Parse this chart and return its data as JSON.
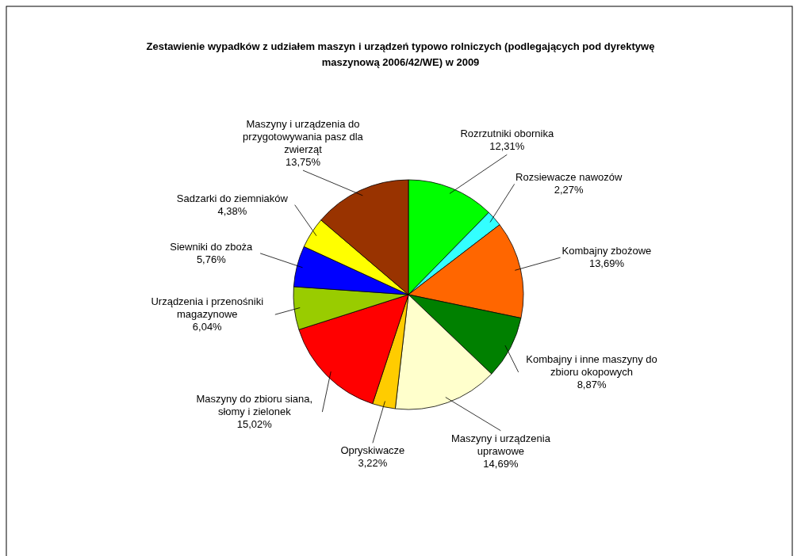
{
  "chart_data": {
    "type": "pie",
    "title": "Zestawienie wypadków z udziałem maszyn i urządzeń typowo rolniczych (podlegających pod dyrektywę maszynową 2006/42/WE) w 2009",
    "categories": [
      "Rozrzutniki obornika",
      "Rozsiewacze nawozów",
      "Kombajny zbożowe",
      "Kombajny i inne maszyny do zbioru okopowych",
      "Maszyny i urządzenia uprawowe",
      "Opryskiwacze",
      "Maszyny do zbioru siana, słomy i zielonek",
      "Urządzenia i przenośniki magazynowe",
      "Siewniki do zboża",
      "Sadzarki do ziemniaków",
      "Maszyny i urządzenia do przygotowywania pasz dla zwierząt"
    ],
    "values": [
      12.31,
      2.27,
      13.69,
      8.87,
      14.69,
      3.22,
      15.02,
      6.04,
      5.76,
      4.38,
      13.75
    ],
    "value_labels": [
      "12,31%",
      "2,27%",
      "13,69%",
      "8,87%",
      "14,69%",
      "3,22%",
      "15,02%",
      "6,04%",
      "5,76%",
      "4,38%",
      "13,75%"
    ],
    "colors": [
      "#00ff00",
      "#33ffff",
      "#ff6600",
      "#008000",
      "#ffffcc",
      "#ffcc00",
      "#ff0000",
      "#99cc00",
      "#0000ff",
      "#ffff00",
      "#993300"
    ]
  }
}
